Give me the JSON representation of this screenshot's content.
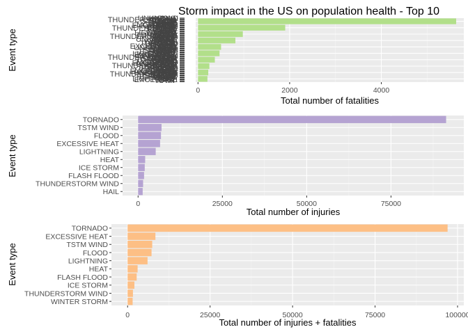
{
  "title": "Storm impact in the US on population health - Top 10",
  "chart_data": [
    {
      "type": "bar",
      "orientation": "horizontal",
      "color": "#b2df8a",
      "xlabel": "Total number of fatalities",
      "ylabel": "Event type",
      "xlim": [
        -50,
        5800
      ],
      "xticks": [
        0,
        2000,
        4000
      ],
      "xtick_labels": [
        "0",
        "2000",
        "4000"
      ],
      "grid": true,
      "overplotted_labels": [
        "UNKNOWN",
        "URBAN",
        "SMALL",
        "LIGHTNING",
        "HIGH",
        "FLASH",
        "ICE",
        "HEAT",
        "THUNDERSTORM",
        "FLOOD",
        "EXCESSIVE",
        "TSTM",
        "TORNADO",
        "WIND",
        "HAIL",
        "STORM",
        "SNOW",
        "RAIN",
        "COLD",
        "FIRE",
        "SURF",
        "WINTER",
        "STREAM",
        "FLD"
      ],
      "values": [
        5633,
        1903,
        978,
        816,
        504,
        470,
        368,
        248,
        224,
        206
      ]
    },
    {
      "type": "bar",
      "orientation": "horizontal",
      "color": "#b5a3d2",
      "xlabel": "Total number of injuries",
      "ylabel": "Event type",
      "xlim": [
        -4600,
        96600
      ],
      "xticks": [
        0,
        25000,
        50000,
        75000
      ],
      "xtick_labels": [
        "0",
        "25000",
        "50000",
        "75000"
      ],
      "grid": true,
      "categories": [
        "TORNADO",
        "TSTM WIND",
        "FLOOD",
        "EXCESSIVE HEAT",
        "LIGHTNING",
        "HEAT",
        "ICE STORM",
        "FLASH FLOOD",
        "THUNDERSTORM WIND",
        "HAIL"
      ],
      "values": [
        91346,
        6957,
        6789,
        6525,
        5230,
        2100,
        1975,
        1777,
        1488,
        1361
      ]
    },
    {
      "type": "bar",
      "orientation": "horizontal",
      "color": "#fdbf85",
      "xlabel": "Total number of injuries + fatalities",
      "ylabel": "Event type",
      "xlim": [
        -4900,
        101900
      ],
      "xticks": [
        0,
        25000,
        50000,
        75000,
        100000
      ],
      "xtick_labels": [
        "0",
        "25000",
        "50000",
        "75000",
        "100000"
      ],
      "grid": true,
      "categories": [
        "TORNADO",
        "EXCESSIVE HEAT",
        "TSTM WIND",
        "FLOOD",
        "LIGHTNING",
        "HEAT",
        "FLASH FLOOD",
        "ICE STORM",
        "THUNDERSTORM WIND",
        "WINTER STORM"
      ],
      "values": [
        96979,
        8428,
        7461,
        7259,
        6046,
        3037,
        2755,
        2064,
        1621,
        1527
      ]
    }
  ]
}
